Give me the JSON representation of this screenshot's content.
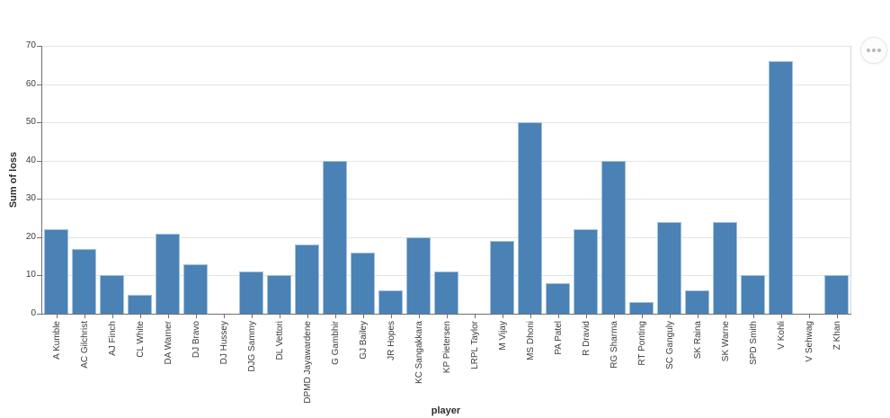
{
  "toolbar": {
    "more_options_icon": "ellipsis"
  },
  "chart_data": {
    "type": "bar",
    "title": "",
    "xlabel": "player",
    "ylabel": "Sum of loss",
    "ylim": [
      0,
      70
    ],
    "ytick_step": 10,
    "grid": true,
    "legend_position": "none",
    "bar_color": "#4a82b5",
    "categories": [
      "A Kumble",
      "AC Gilchrist",
      "AJ Finch",
      "CL White",
      "DA Warner",
      "DJ Bravo",
      "DJ Hussey",
      "DJG Sammy",
      "DL Vettori",
      "DPMD Jayawardene",
      "G Gambhir",
      "GJ Bailey",
      "JR Hopes",
      "KC Sangakkara",
      "KP Pietersen",
      "LRPL Taylor",
      "M Vijay",
      "MS Dhoni",
      "PA Patel",
      "R Dravid",
      "RG Sharma",
      "RT Ponting",
      "SC Ganguly",
      "SK Raina",
      "SK Warne",
      "SPD Smith",
      "V Kohli",
      "V Sehwag",
      "Z Khan"
    ],
    "values": [
      22,
      17,
      10,
      5,
      21,
      13,
      0,
      11,
      10,
      18,
      40,
      16,
      6,
      20,
      11,
      0,
      19,
      50,
      8,
      22,
      40,
      3,
      24,
      6,
      24,
      10,
      66,
      0,
      10
    ]
  }
}
